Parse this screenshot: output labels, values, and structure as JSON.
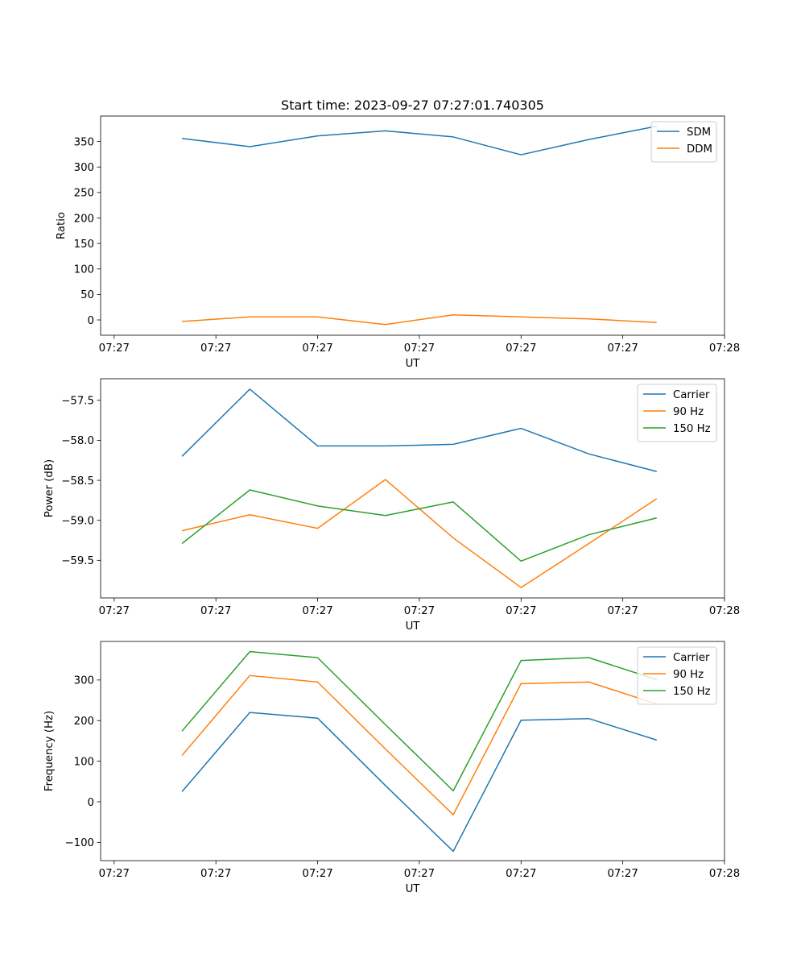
{
  "chart_data": [
    {
      "type": "line",
      "title": "Start time: 2023-09-27 07:27:01.740305",
      "xlabel": "UT",
      "ylabel": "Ratio",
      "x": [
        1,
        2,
        3,
        4,
        5,
        6,
        7,
        8
      ],
      "x_ticks": [
        0,
        1.5,
        3,
        4.5,
        6,
        7.5,
        9
      ],
      "x_tick_labels": [
        "07:27",
        "07:27",
        "07:27",
        "07:27",
        "07:27",
        "07:27",
        "07:28"
      ],
      "xlim": [
        -0.2,
        9
      ],
      "ylim": [
        -30,
        400
      ],
      "y_ticks": [
        0,
        50,
        100,
        150,
        200,
        250,
        300,
        350
      ],
      "y_tick_labels": [
        "0",
        "50",
        "100",
        "150",
        "200",
        "250",
        "300",
        "350"
      ],
      "legend_position": "top-right",
      "series": [
        {
          "name": "SDM",
          "color": "#1f77b4",
          "values": [
            356,
            340,
            361,
            371,
            359,
            324,
            354,
            380
          ]
        },
        {
          "name": "DDM",
          "color": "#ff7f0e",
          "values": [
            -3,
            6,
            6,
            -9,
            10,
            6,
            2,
            -5
          ]
        }
      ]
    },
    {
      "type": "line",
      "title": "",
      "xlabel": "UT",
      "ylabel": "Power (dB)",
      "x": [
        1,
        2,
        3,
        4,
        5,
        6,
        7,
        8
      ],
      "x_ticks": [
        0,
        1.5,
        3,
        4.5,
        6,
        7.5,
        9
      ],
      "x_tick_labels": [
        "07:27",
        "07:27",
        "07:27",
        "07:27",
        "07:27",
        "07:27",
        "07:28"
      ],
      "xlim": [
        -0.2,
        9
      ],
      "ylim": [
        -59.97,
        -57.23
      ],
      "y_ticks": [
        -57.5,
        -58.0,
        -58.5,
        -59.0,
        -59.5
      ],
      "y_tick_labels": [
        "−57.5",
        "−58.0",
        "−58.5",
        "−59.0",
        "−59.5"
      ],
      "legend_position": "top-right",
      "series": [
        {
          "name": "Carrier",
          "color": "#1f77b4",
          "values": [
            -58.2,
            -57.36,
            -58.07,
            -58.07,
            -58.05,
            -57.85,
            -58.17,
            -58.39
          ]
        },
        {
          "name": "90 Hz",
          "color": "#ff7f0e",
          "values": [
            -59.13,
            -58.93,
            -59.1,
            -58.49,
            -59.22,
            -59.84,
            -59.29,
            -58.73
          ]
        },
        {
          "name": "150 Hz",
          "color": "#2ca02c",
          "values": [
            -59.29,
            -58.62,
            -58.82,
            -58.94,
            -58.77,
            -59.51,
            -59.18,
            -58.97
          ]
        }
      ]
    },
    {
      "type": "line",
      "title": "",
      "xlabel": "UT",
      "ylabel": "Frequency (Hz)",
      "x": [
        1,
        2,
        3,
        4,
        5,
        6,
        7,
        8
      ],
      "x_ticks": [
        0,
        1.5,
        3,
        4.5,
        6,
        7.5,
        9
      ],
      "x_tick_labels": [
        "07:27",
        "07:27",
        "07:27",
        "07:27",
        "07:27",
        "07:27",
        "07:28"
      ],
      "xlim": [
        -0.2,
        9
      ],
      "ylim": [
        -145,
        395
      ],
      "y_ticks": [
        -100,
        0,
        100,
        200,
        300
      ],
      "y_tick_labels": [
        "−100",
        "0",
        "100",
        "200",
        "300"
      ],
      "legend_position": "top-right",
      "series": [
        {
          "name": "Carrier",
          "color": "#1f77b4",
          "values": [
            25,
            220,
            206,
            40,
            -122,
            201,
            205,
            152
          ]
        },
        {
          "name": "90 Hz",
          "color": "#ff7f0e",
          "values": [
            114,
            311,
            295,
            130,
            -32,
            291,
            295,
            241
          ]
        },
        {
          "name": "150 Hz",
          "color": "#2ca02c",
          "values": [
            174,
            370,
            355,
            190,
            27,
            348,
            355,
            301
          ]
        }
      ]
    }
  ]
}
